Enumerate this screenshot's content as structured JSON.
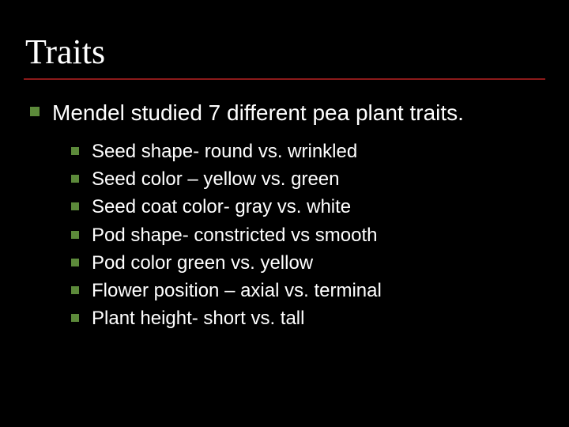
{
  "slide": {
    "title": "Traits",
    "main_item": "Mendel studied 7 different pea plant traits.",
    "sub_items": [
      "Seed shape- round vs. wrinkled",
      "Seed color – yellow vs. green",
      "Seed coat color- gray vs. white",
      "Pod shape- constricted vs smooth",
      "Pod color green vs. yellow",
      "Flower position – axial vs. terminal",
      "Plant height- short vs. tall"
    ]
  },
  "style": {
    "background_color": "#000000",
    "text_color": "#ffffff",
    "bullet_color": "#5c8a3a",
    "underline_color": "#8b1a1a",
    "title_font": "Times New Roman",
    "body_font": "Arial",
    "title_fontsize": 44,
    "main_fontsize": 28,
    "sub_fontsize": 24
  }
}
